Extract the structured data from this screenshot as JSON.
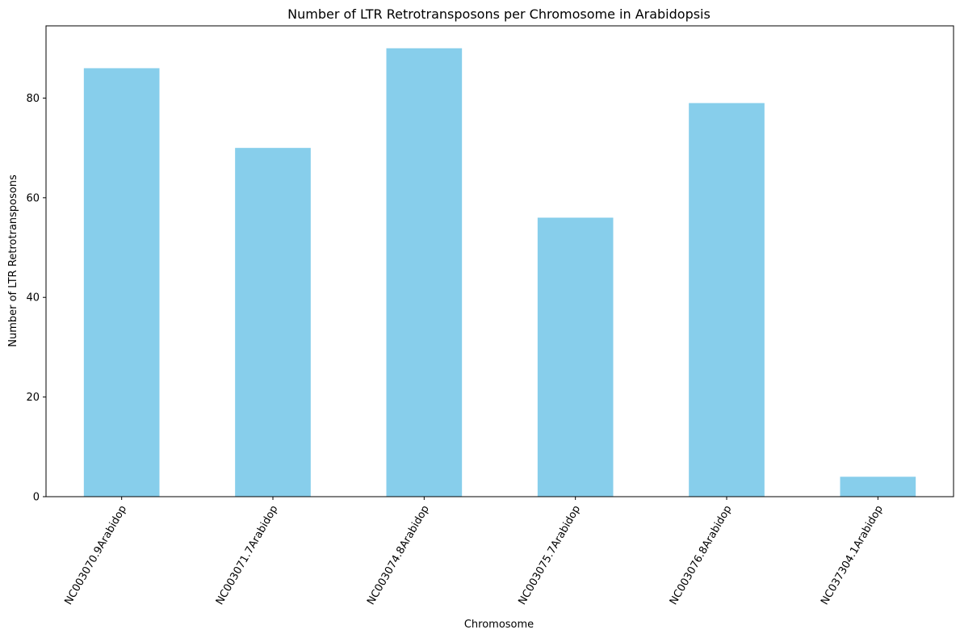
{
  "chart_data": {
    "type": "bar",
    "title": "Number of LTR Retrotransposons per Chromosome in Arabidopsis",
    "xlabel": "Chromosome",
    "ylabel": "Number of LTR Retrotransposons",
    "categories": [
      "NC003070.9Arabidop",
      "NC003071.7Arabidop",
      "NC003074.8Arabidop",
      "NC003075.7Arabidop",
      "NC003076.8Arabidop",
      "NC037304.1Arabidop"
    ],
    "values": [
      86,
      70,
      90,
      56,
      79,
      4
    ],
    "ylim": [
      0,
      94.5
    ],
    "yticks": [
      0,
      20,
      40,
      60,
      80
    ],
    "ytick_labels": [
      "0",
      "20",
      "40",
      "60",
      "80"
    ],
    "bar_color": "#87ceeb",
    "grid": false,
    "legend": "none"
  }
}
